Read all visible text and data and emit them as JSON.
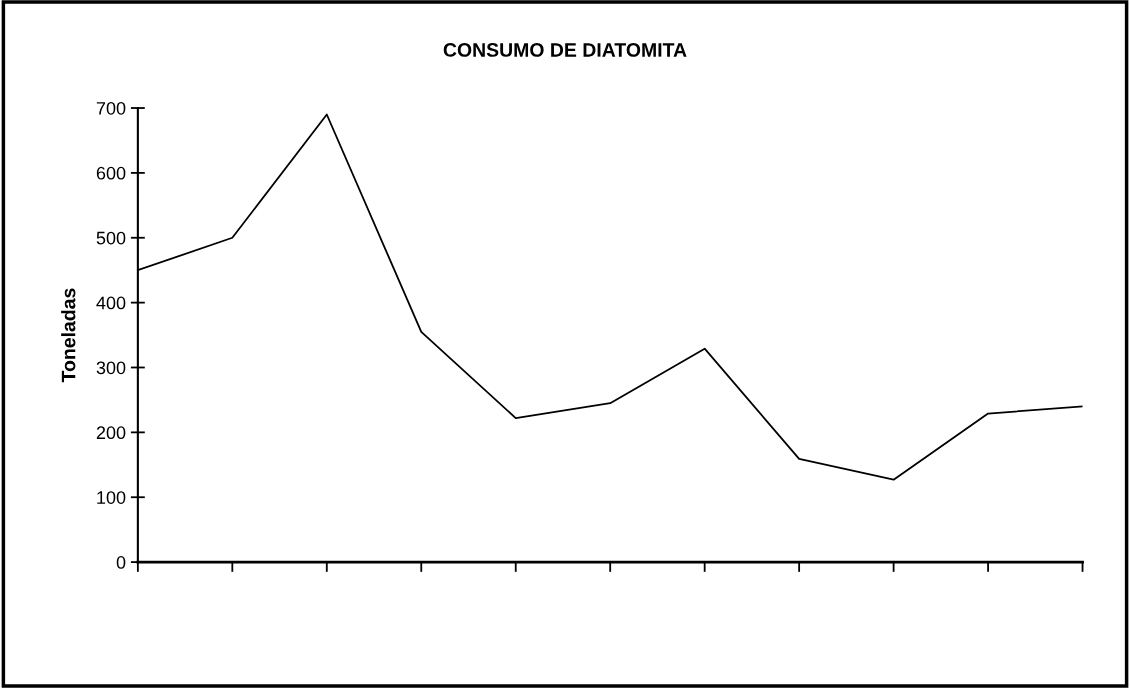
{
  "chart_data": {
    "type": "line",
    "title": "CONSUMO DE DIATOMITA",
    "ylabel": "Toneladas",
    "categories": [
      null,
      null,
      null,
      null,
      null,
      null,
      null,
      null,
      null,
      null,
      null
    ],
    "series": [
      {
        "color": "#000000",
        "values": [
          450,
          500,
          690,
          355,
          222,
          245,
          329,
          159,
          127,
          229,
          240
        ]
      }
    ],
    "ylim": [
      0,
      700
    ],
    "yticks": [
      0,
      100,
      200,
      300,
      400,
      500,
      600,
      700
    ],
    "grid": false,
    "legend": false,
    "marker": "none",
    "line_style": "solid"
  }
}
